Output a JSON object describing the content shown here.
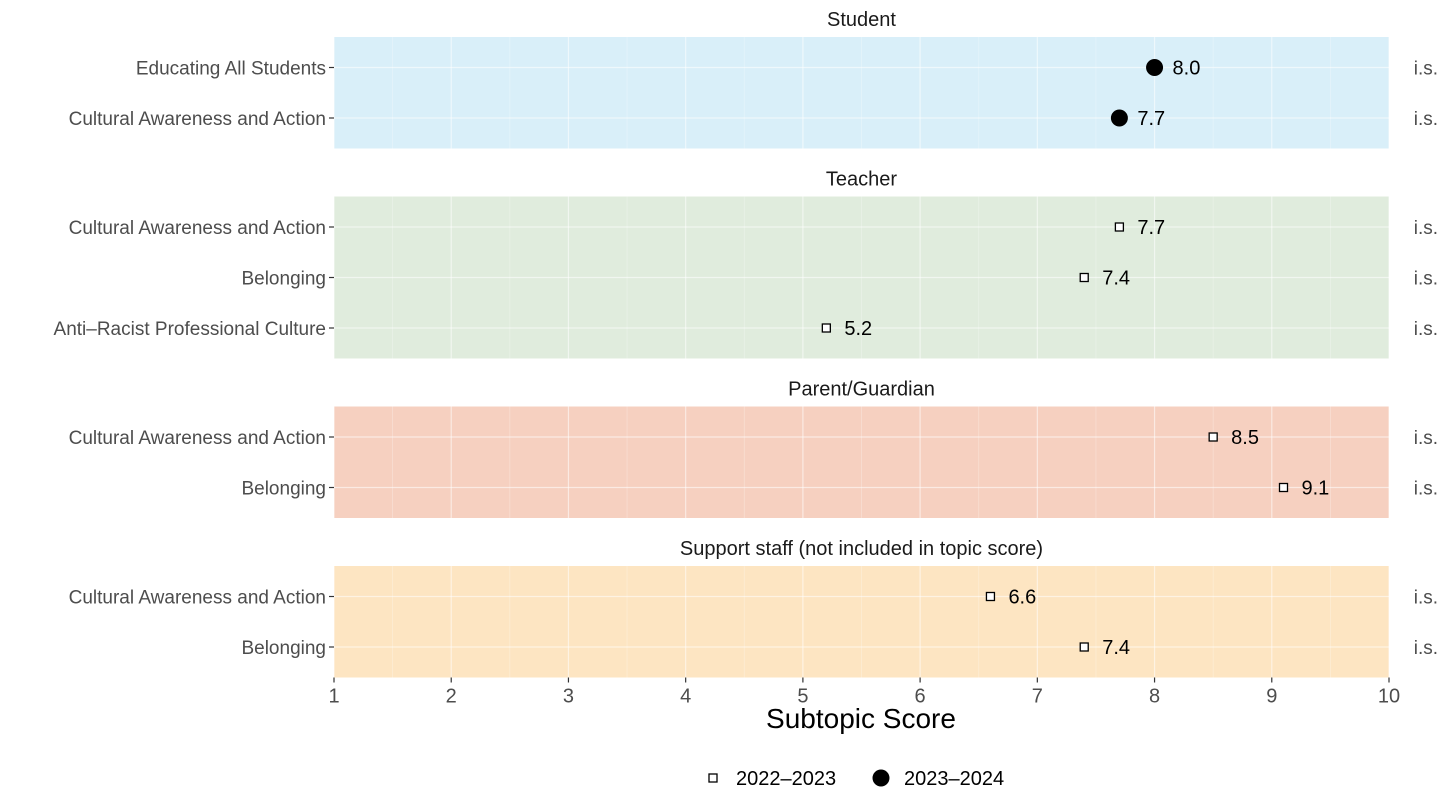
{
  "chart_data": {
    "type": "scatter",
    "xlabel": "Subtopic Score",
    "xlim": [
      1,
      10
    ],
    "x_ticks": [
      1,
      2,
      3,
      4,
      5,
      6,
      7,
      8,
      9,
      10
    ],
    "grid": true,
    "legend_position": "bottom",
    "legend": [
      {
        "name": "2022–2023",
        "marker": "open-square"
      },
      {
        "name": "2023–2024",
        "marker": "filled-circle"
      }
    ],
    "right_annotation": "i.s.",
    "panels": [
      {
        "title": "Student",
        "background": "#d9eff9",
        "rows": [
          {
            "category": "Educating All Students",
            "value": 8.0,
            "label": "8.0",
            "series": "2023–2024",
            "note": "i.s."
          },
          {
            "category": "Cultural Awareness and Action",
            "value": 7.7,
            "label": "7.7",
            "series": "2023–2024",
            "note": "i.s."
          }
        ]
      },
      {
        "title": "Teacher",
        "background": "#e0ecdd",
        "rows": [
          {
            "category": "Cultural Awareness and Action",
            "value": 7.7,
            "label": "7.7",
            "series": "2022–2023",
            "note": "i.s."
          },
          {
            "category": "Belonging",
            "value": 7.4,
            "label": "7.4",
            "series": "2022–2023",
            "note": "i.s."
          },
          {
            "category": "Anti–Racist Professional Culture",
            "value": 5.2,
            "label": "5.2",
            "series": "2022–2023",
            "note": "i.s."
          }
        ]
      },
      {
        "title": "Parent/Guardian",
        "background": "#f6d0c0",
        "rows": [
          {
            "category": "Cultural Awareness and Action",
            "value": 8.5,
            "label": "8.5",
            "series": "2022–2023",
            "note": "i.s."
          },
          {
            "category": "Belonging",
            "value": 9.1,
            "label": "9.1",
            "series": "2022–2023",
            "note": "i.s."
          }
        ]
      },
      {
        "title": "Support staff (not included in topic score)",
        "background": "#fde5c2",
        "rows": [
          {
            "category": "Cultural Awareness and Action",
            "value": 6.6,
            "label": "6.6",
            "series": "2022–2023",
            "note": "i.s."
          },
          {
            "category": "Belonging",
            "value": 7.4,
            "label": "7.4",
            "series": "2022–2023",
            "note": "i.s."
          }
        ]
      }
    ]
  }
}
